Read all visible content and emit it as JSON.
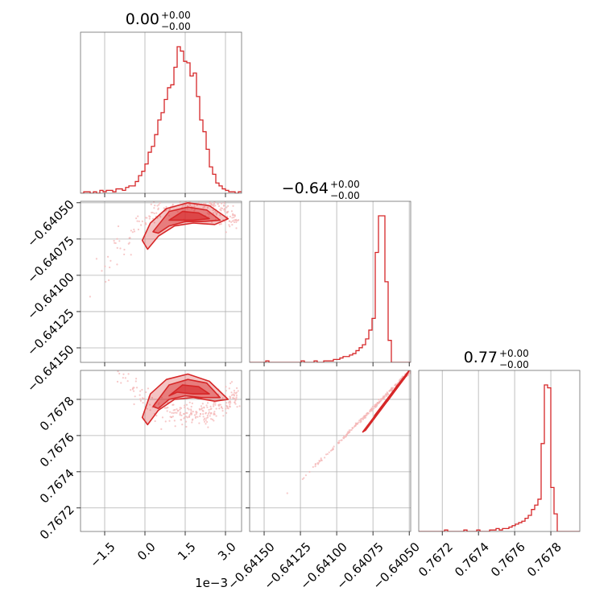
{
  "chart_data": {
    "type": "corner",
    "accent_color": "#d62728",
    "scatter_color": "#f4b6b6",
    "grid": true,
    "offset_label": "1e−3",
    "parameters": [
      {
        "title_value": "0.00",
        "title_plus": "+0.00",
        "title_minus": "−0.00",
        "range": [
          -2.4,
          3.6
        ],
        "ticks": [
          {
            "v": -1.5,
            "label": "−1.5"
          },
          {
            "v": 0.0,
            "label": "0.0"
          },
          {
            "v": 1.5,
            "label": "1.5"
          },
          {
            "v": 3.0,
            "label": "3.0"
          }
        ]
      },
      {
        "title_value": "−0.64",
        "title_plus": "+0.00",
        "title_minus": "−0.00",
        "range": [
          -0.6416,
          -0.64049
        ],
        "ticks": [
          {
            "v": -0.6415,
            "label": "−0.64150"
          },
          {
            "v": -0.64125,
            "label": "−0.64125"
          },
          {
            "v": -0.641,
            "label": "−0.64100"
          },
          {
            "v": -0.64075,
            "label": "−0.64075"
          },
          {
            "v": -0.6405,
            "label": "−0.64050"
          }
        ]
      },
      {
        "title_value": "0.77",
        "title_plus": "+0.00",
        "title_minus": "−0.00",
        "range": [
          0.76707,
          0.76796
        ],
        "ticks": [
          {
            "v": 0.7672,
            "label": "0.7672"
          },
          {
            "v": 0.7674,
            "label": "0.7674"
          },
          {
            "v": 0.7676,
            "label": "0.7676"
          },
          {
            "v": 0.7678,
            "label": "0.7678"
          }
        ]
      }
    ],
    "histograms": [
      {
        "param": 0,
        "bin_start": -2.4,
        "bin_width": 0.12,
        "counts": [
          0,
          1,
          1,
          0,
          1,
          0,
          2,
          1,
          2,
          2,
          1,
          3,
          3,
          2,
          4,
          5,
          5,
          8,
          12,
          15,
          20,
          28,
          32,
          40,
          50,
          55,
          64,
          72,
          74,
          86,
          100,
          97,
          90,
          89,
          80,
          82,
          66,
          50,
          42,
          30,
          18,
          13,
          7,
          5,
          3,
          2,
          1,
          1,
          0,
          1
        ]
      },
      {
        "param": 1,
        "bin_start": -0.6416,
        "bin_width": 2.22e-05,
        "counts": [
          0,
          0,
          0,
          0,
          0,
          1,
          0,
          0,
          0,
          0,
          0,
          0,
          0,
          0,
          0,
          0,
          1,
          0,
          0,
          0,
          1,
          0,
          0,
          1,
          1,
          1,
          2,
          2,
          3,
          4,
          4,
          5,
          6,
          8,
          10,
          12,
          16,
          22,
          30,
          75,
          100,
          100,
          55,
          15,
          0,
          0,
          0,
          0,
          0,
          0
        ]
      },
      {
        "param": 2,
        "bin_start": 0.76707,
        "bin_width": 1.78e-05,
        "counts": [
          0,
          0,
          0,
          0,
          0,
          0,
          0,
          0,
          1,
          0,
          0,
          0,
          0,
          0,
          1,
          0,
          0,
          0,
          1,
          0,
          0,
          0,
          1,
          1,
          2,
          1,
          2,
          2,
          3,
          4,
          5,
          6,
          7,
          9,
          11,
          15,
          18,
          22,
          60,
          100,
          98,
          30,
          12,
          0,
          0,
          0,
          0,
          0,
          0,
          0
        ]
      }
    ],
    "pairs": [
      {
        "x_param": 0,
        "y_param": 1,
        "center": [
          1.6,
          -0.64062
        ],
        "contour_levels": [
          [
            [
              -0.1,
              -0.64076
            ],
            [
              0.2,
              -0.64064
            ],
            [
              0.8,
              -0.64054
            ],
            [
              1.6,
              -0.6405
            ],
            [
              2.4,
              -0.64052
            ],
            [
              3.1,
              -0.64061
            ],
            [
              2.6,
              -0.64065
            ],
            [
              1.8,
              -0.64064
            ],
            [
              1.1,
              -0.64066
            ],
            [
              0.5,
              -0.64073
            ],
            [
              0.1,
              -0.64082
            ]
          ],
          [
            [
              0.3,
              -0.6407
            ],
            [
              0.9,
              -0.64056
            ],
            [
              1.6,
              -0.64053
            ],
            [
              2.3,
              -0.64055
            ],
            [
              2.8,
              -0.64062
            ],
            [
              2.1,
              -0.64063
            ],
            [
              1.5,
              -0.64063
            ],
            [
              0.9,
              -0.64066
            ],
            [
              0.5,
              -0.64071
            ]
          ],
          [
            [
              0.9,
              -0.64062
            ],
            [
              1.4,
              -0.64056
            ],
            [
              2.0,
              -0.64057
            ],
            [
              2.4,
              -0.64061
            ],
            [
              1.8,
              -0.64062
            ],
            [
              1.2,
              -0.64062
            ]
          ]
        ]
      },
      {
        "x_param": 0,
        "y_param": 2,
        "center": [
          1.6,
          0.76782
        ],
        "contour_levels": [
          [
            [
              -0.1,
              0.7677
            ],
            [
              0.2,
              0.76783
            ],
            [
              0.8,
              0.76791
            ],
            [
              1.6,
              0.76794
            ],
            [
              2.4,
              0.7679
            ],
            [
              3.1,
              0.7678
            ],
            [
              2.6,
              0.76779
            ],
            [
              1.8,
              0.76781
            ],
            [
              1.1,
              0.7678
            ],
            [
              0.5,
              0.76774
            ],
            [
              0.1,
              0.76766
            ]
          ],
          [
            [
              0.3,
              0.76776
            ],
            [
              0.9,
              0.76788
            ],
            [
              1.6,
              0.76791
            ],
            [
              2.3,
              0.76789
            ],
            [
              2.8,
              0.76781
            ],
            [
              2.1,
              0.76781
            ],
            [
              1.5,
              0.76782
            ],
            [
              0.9,
              0.7678
            ],
            [
              0.5,
              0.76775
            ]
          ],
          [
            [
              0.9,
              0.76782
            ],
            [
              1.4,
              0.76788
            ],
            [
              2.0,
              0.76787
            ],
            [
              2.4,
              0.76783
            ],
            [
              1.8,
              0.76783
            ],
            [
              1.2,
              0.76784
            ]
          ]
        ]
      },
      {
        "x_param": 1,
        "y_param": 2,
        "center": [
          -0.64062,
          0.76782
        ],
        "contour_levels": [
          [
            [
              -0.64082,
              0.76762
            ],
            [
              -0.64052,
              0.76794
            ],
            [
              -0.6405,
              0.76796
            ],
            [
              -0.64052,
              0.76793
            ],
            [
              -0.6408,
              0.76763
            ]
          ],
          [
            [
              -0.64074,
              0.76771
            ],
            [
              -0.64054,
              0.76792
            ],
            [
              -0.64052,
              0.76793
            ],
            [
              -0.64072,
              0.76772
            ]
          ],
          [
            [
              -0.64066,
              0.76779
            ],
            [
              -0.64058,
              0.76788
            ],
            [
              -0.64057,
              0.76788
            ],
            [
              -0.64065,
              0.76779
            ]
          ]
        ]
      }
    ]
  }
}
